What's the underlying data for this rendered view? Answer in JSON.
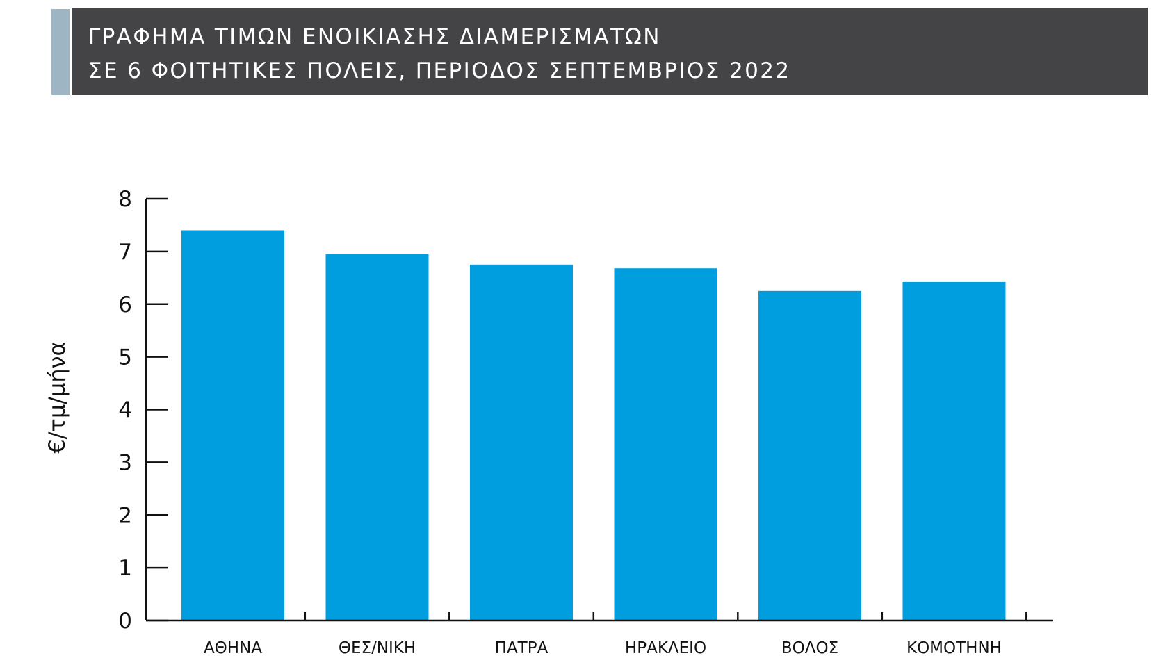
{
  "header": {
    "title_line1": "ΓΡΑΦΗΜΑ ΤΙΜΩΝ ΕΝΟΙΚΙΑΣΗΣ ΔΙΑΜΕΡΙΣΜΑΤΩΝ",
    "title_line2": "ΣΕ 6 ΦΟΙΤΗΤΙΚΕΣ ΠΟΛΕΙΣ, ΠΕΡΙΟΔΟΣ ΣΕΠΤΕΜΒΡΙΟΣ 2022"
  },
  "colors": {
    "header_bg": "#444446",
    "header_accent": "#9eb6c4",
    "bar": "#009ddf",
    "axis": "#111111"
  },
  "chart_data": {
    "type": "bar",
    "title": "ΓΡΑΦΗΜΑ ΤΙΜΩΝ ΕΝΟΙΚΙΑΣΗΣ ΔΙΑΜΕΡΙΣΜΑΤΩΝ ΣΕ 6 ΦΟΙΤΗΤΙΚΕΣ ΠΟΛΕΙΣ, ΠΕΡΙΟΔΟΣ ΣΕΠΤΕΜΒΡΙΟΣ 2022",
    "categories": [
      "ΑΘΗΝΑ",
      "ΘΕΣ/ΝΙΚΗ",
      "ΠΑΤΡΑ",
      "ΗΡΑΚΛΕΙΟ",
      "ΒΟΛΟΣ",
      "ΚΟΜΟΤΗΝΗ"
    ],
    "values": [
      7.4,
      6.95,
      6.75,
      6.68,
      6.25,
      6.42
    ],
    "xlabel": "",
    "ylabel": "€/τμ/μήνα",
    "ylim": [
      0,
      8
    ],
    "yticks": [
      "0",
      "1",
      "2",
      "3",
      "4",
      "5",
      "6",
      "7",
      "8"
    ],
    "grid": false,
    "legend": "none"
  }
}
